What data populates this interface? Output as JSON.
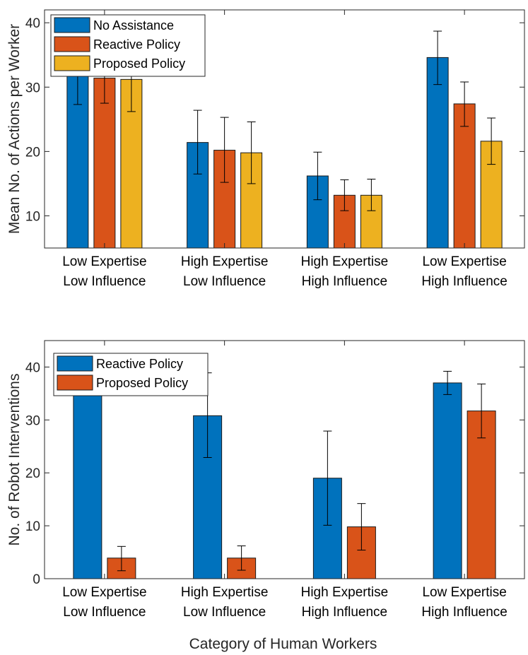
{
  "chart_data": [
    {
      "type": "bar",
      "title": "",
      "xlabel": "",
      "ylabel": "Mean No. of Actions per Worker",
      "ylim": [
        5,
        42
      ],
      "yticks": [
        10,
        20,
        30,
        40
      ],
      "grid": false,
      "legend_position": "top-left",
      "categories": [
        [
          "Low Expertise",
          "Low Influence"
        ],
        [
          "High Expertise",
          "Low Influence"
        ],
        [
          "High Expertise",
          "High Influence"
        ],
        [
          "Low Expertise",
          "High Influence"
        ]
      ],
      "series": [
        {
          "name": "No Assistance",
          "color": "#0072bd",
          "values": [
            32.0,
            21.4,
            16.2,
            34.6
          ],
          "err_low": [
            27.3,
            16.5,
            12.5,
            30.4
          ],
          "err_high": [
            36.7,
            26.4,
            19.9,
            38.7
          ]
        },
        {
          "name": "Reactive Policy",
          "color": "#d95319",
          "values": [
            31.4,
            20.2,
            13.2,
            27.4
          ],
          "err_low": [
            27.5,
            15.2,
            10.8,
            23.9
          ],
          "err_high": [
            35.3,
            25.3,
            15.6,
            30.8
          ]
        },
        {
          "name": "Proposed Policy",
          "color": "#edb120",
          "values": [
            31.2,
            19.8,
            13.2,
            21.6
          ],
          "err_low": [
            26.2,
            15.0,
            10.8,
            18.0
          ],
          "err_high": [
            36.2,
            24.6,
            15.7,
            25.2
          ]
        }
      ]
    },
    {
      "type": "bar",
      "title": "",
      "xlabel": "Category of Human Workers",
      "ylabel": "No. of Robot Interventions",
      "ylim": [
        0,
        45
      ],
      "yticks": [
        0,
        10,
        20,
        30,
        40
      ],
      "grid": false,
      "legend_position": "top-left",
      "categories": [
        [
          "Low Expertise",
          "Low Influence"
        ],
        [
          "High Expertise",
          "Low Influence"
        ],
        [
          "High Expertise",
          "High Influence"
        ],
        [
          "Low Expertise",
          "High Influence"
        ]
      ],
      "series": [
        {
          "name": "Reactive Policy",
          "color": "#0072bd",
          "values": [
            37.0,
            30.8,
            19.0,
            37.0
          ],
          "err_low": [
            34.9,
            22.9,
            10.1,
            34.8
          ],
          "err_high": [
            39.1,
            38.9,
            27.9,
            39.2
          ]
        },
        {
          "name": "Proposed Policy",
          "color": "#d95319",
          "values": [
            3.9,
            3.9,
            9.8,
            31.7
          ],
          "err_low": [
            1.5,
            1.6,
            5.4,
            26.6
          ],
          "err_high": [
            6.1,
            6.2,
            14.2,
            36.8
          ]
        }
      ]
    }
  ]
}
